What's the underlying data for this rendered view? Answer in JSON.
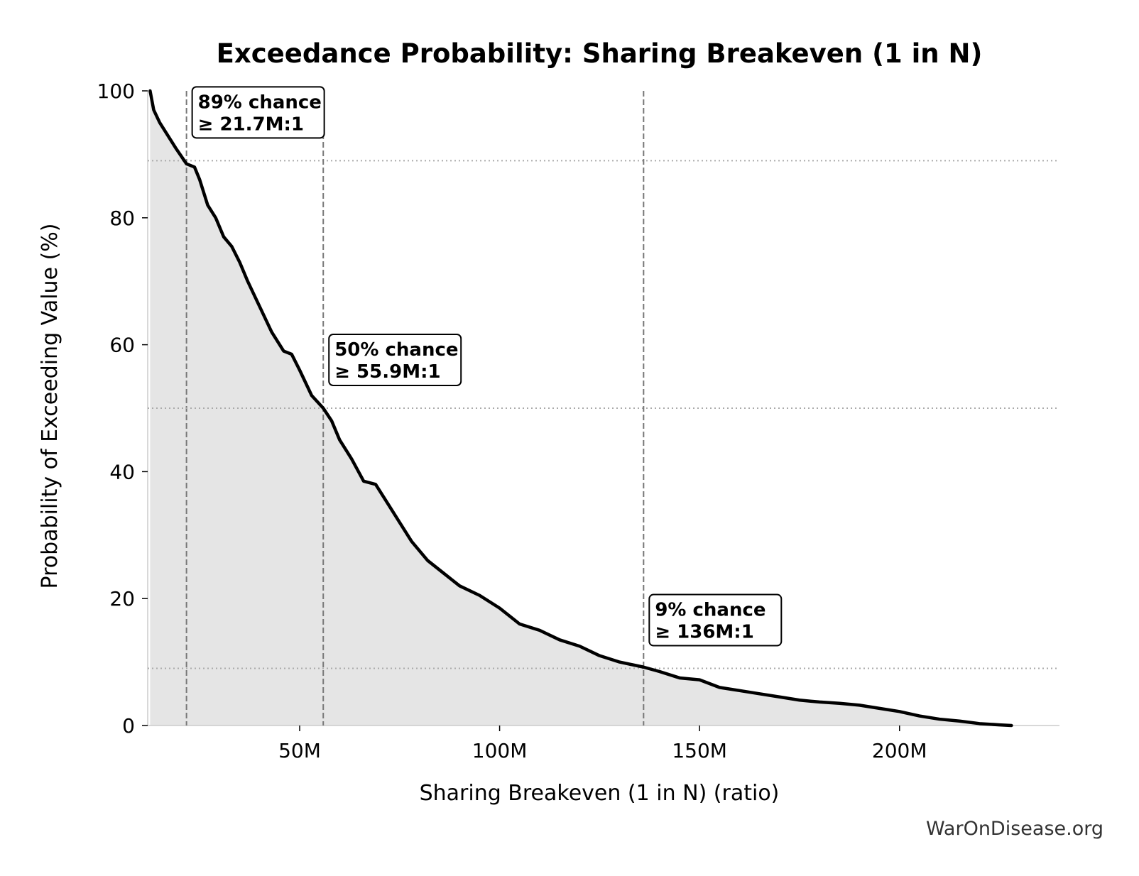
{
  "chart_data": {
    "type": "area",
    "title": "Exceedance Probability: Sharing Breakeven (1 in N)",
    "xlabel": "Sharing Breakeven (1 in N) (ratio)",
    "ylabel": "Probability of Exceeding Value (%)",
    "xlim": [
      12000000,
      240000000
    ],
    "ylim": [
      0,
      100
    ],
    "x_ticks": [
      {
        "value": 50000000,
        "label": "50M"
      },
      {
        "value": 100000000,
        "label": "100M"
      },
      {
        "value": 150000000,
        "label": "150M"
      },
      {
        "value": 200000000,
        "label": "200M"
      }
    ],
    "y_ticks": [
      {
        "value": 0,
        "label": "0"
      },
      {
        "value": 20,
        "label": "20"
      },
      {
        "value": 40,
        "label": "40"
      },
      {
        "value": 60,
        "label": "60"
      },
      {
        "value": 80,
        "label": "80"
      },
      {
        "value": 100,
        "label": "100"
      }
    ],
    "grid": false,
    "series": [
      {
        "x": [
          12600000,
          13500000,
          15000000,
          17000000,
          19000000,
          21700000,
          23700000,
          25000000,
          27000000,
          29000000,
          31000000,
          33000000,
          35000000,
          37000000,
          40000000,
          43000000,
          46000000,
          48000000,
          50000000,
          53000000,
          55900000,
          58000000,
          60000000,
          63000000,
          66000000,
          69000000,
          72000000,
          75000000,
          78000000,
          82000000,
          86000000,
          90000000,
          95000000,
          100000000,
          105000000,
          110000000,
          115000000,
          120000000,
          125000000,
          130000000,
          136000000,
          140000000,
          145000000,
          150000000,
          155000000,
          160000000,
          165000000,
          170000000,
          175000000,
          180000000,
          185000000,
          190000000,
          195000000,
          200000000,
          205000000,
          210000000,
          215000000,
          220000000,
          225000000,
          228000000
        ],
        "y": [
          100,
          97,
          95,
          93,
          91,
          88.5,
          88,
          86,
          82,
          80,
          77,
          75.5,
          73,
          70,
          66,
          62,
          59,
          58.5,
          56,
          52,
          50,
          48,
          45,
          42,
          38.5,
          38,
          35,
          32,
          29,
          26,
          24,
          22,
          20.5,
          18.5,
          16,
          15,
          13.5,
          12.5,
          11,
          10,
          9.2,
          8.5,
          7.5,
          7.2,
          6,
          5.5,
          5,
          4.5,
          4,
          3.7,
          3.5,
          3.2,
          2.7,
          2.2,
          1.5,
          1,
          0.7,
          0.3,
          0.1,
          0
        ],
        "line_color": "#000000",
        "fill_color": "#e5e5e5"
      }
    ],
    "annotations": [
      {
        "x": 21700000,
        "y": 89,
        "line1": "89% chance",
        "line2": "≥ 21.7M:1"
      },
      {
        "x": 55900000,
        "y": 50,
        "line1": "50% chance",
        "line2": "≥ 55.9M:1"
      },
      {
        "x": 136000000,
        "y": 9,
        "line1": "9% chance",
        "line2": "≥ 136M:1"
      }
    ],
    "credit": "WarOnDisease.org"
  }
}
